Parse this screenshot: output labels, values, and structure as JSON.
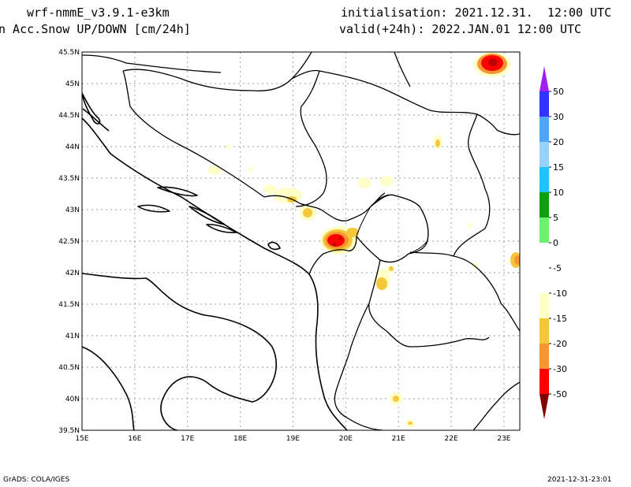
{
  "header": {
    "model": "wrf-nmmE_v3.9.1-e3km",
    "field": "n Acc.Snow UP/DOWN [cm/24h]",
    "init": "initialisation: 2021.12.31.  12:00 UTC",
    "valid": "valid(+24h): 2022.JAN.01 12:00 UTC"
  },
  "footer": {
    "left": "GrADS: COLA/IGES",
    "right": "2021-12-31-23:01"
  },
  "axes": {
    "lon_labels": [
      "15E",
      "16E",
      "17E",
      "18E",
      "19E",
      "20E",
      "21E",
      "22E",
      "23E"
    ],
    "lat_labels": [
      "39.5N",
      "40N",
      "40.5N",
      "41N",
      "41.5N",
      "42N",
      "42.5N",
      "43N",
      "43.5N",
      "44N",
      "44.5N",
      "45N",
      "45.5N"
    ],
    "lon_range": [
      15,
      23.3
    ],
    "lat_range": [
      39.5,
      45.5
    ],
    "grid": true
  },
  "colorbar": {
    "labels": [
      "50",
      "30",
      "20",
      "15",
      "10",
      "5",
      "0",
      "-5",
      "-10",
      "-15",
      "-20",
      "-30",
      "-50"
    ],
    "colors": {
      "top_arrow": "#a020f0",
      "c50": "#3232ff",
      "c30": "#50a5f5",
      "c20": "#96d2fa",
      "c15": "#1ec3fa",
      "c10": "#109f10",
      "c5": "#6ef06e",
      "neutral": "#ffffff",
      "m5": "#ffffc8",
      "m10": "#f5c83c",
      "m15": "#f59632",
      "m20": "#ff0000",
      "m30": "#c00000",
      "bottom_arrow": "#800000"
    }
  }
}
